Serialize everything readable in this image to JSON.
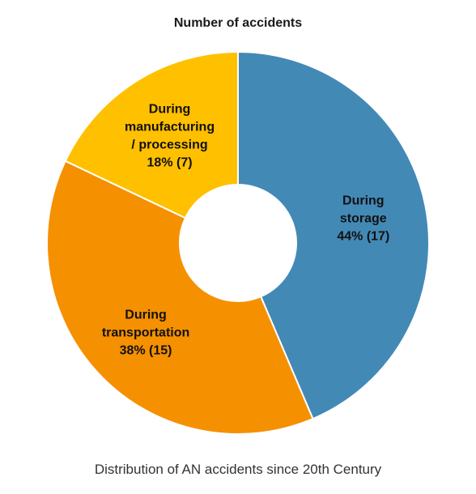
{
  "caption": "Distribution of AN accidents since 20th Century",
  "chart_data": {
    "type": "pie",
    "donut": true,
    "title": "Number of accidents",
    "slices": [
      {
        "name": "During storage",
        "label_lines": [
          "During",
          "storage",
          "44%  (17)"
        ],
        "percent": 44,
        "value": 17,
        "color": "#4289b6"
      },
      {
        "name": "During transportation",
        "label_lines": [
          "During",
          "transportation",
          "38%  (15)"
        ],
        "percent": 38,
        "value": 15,
        "color": "#f59000"
      },
      {
        "name": "During manufacturing / processing",
        "label_lines": [
          "During",
          "manufacturing",
          "/ processing",
          "18%  (7)"
        ],
        "percent": 18,
        "value": 7,
        "color": "#ffc000"
      }
    ]
  }
}
